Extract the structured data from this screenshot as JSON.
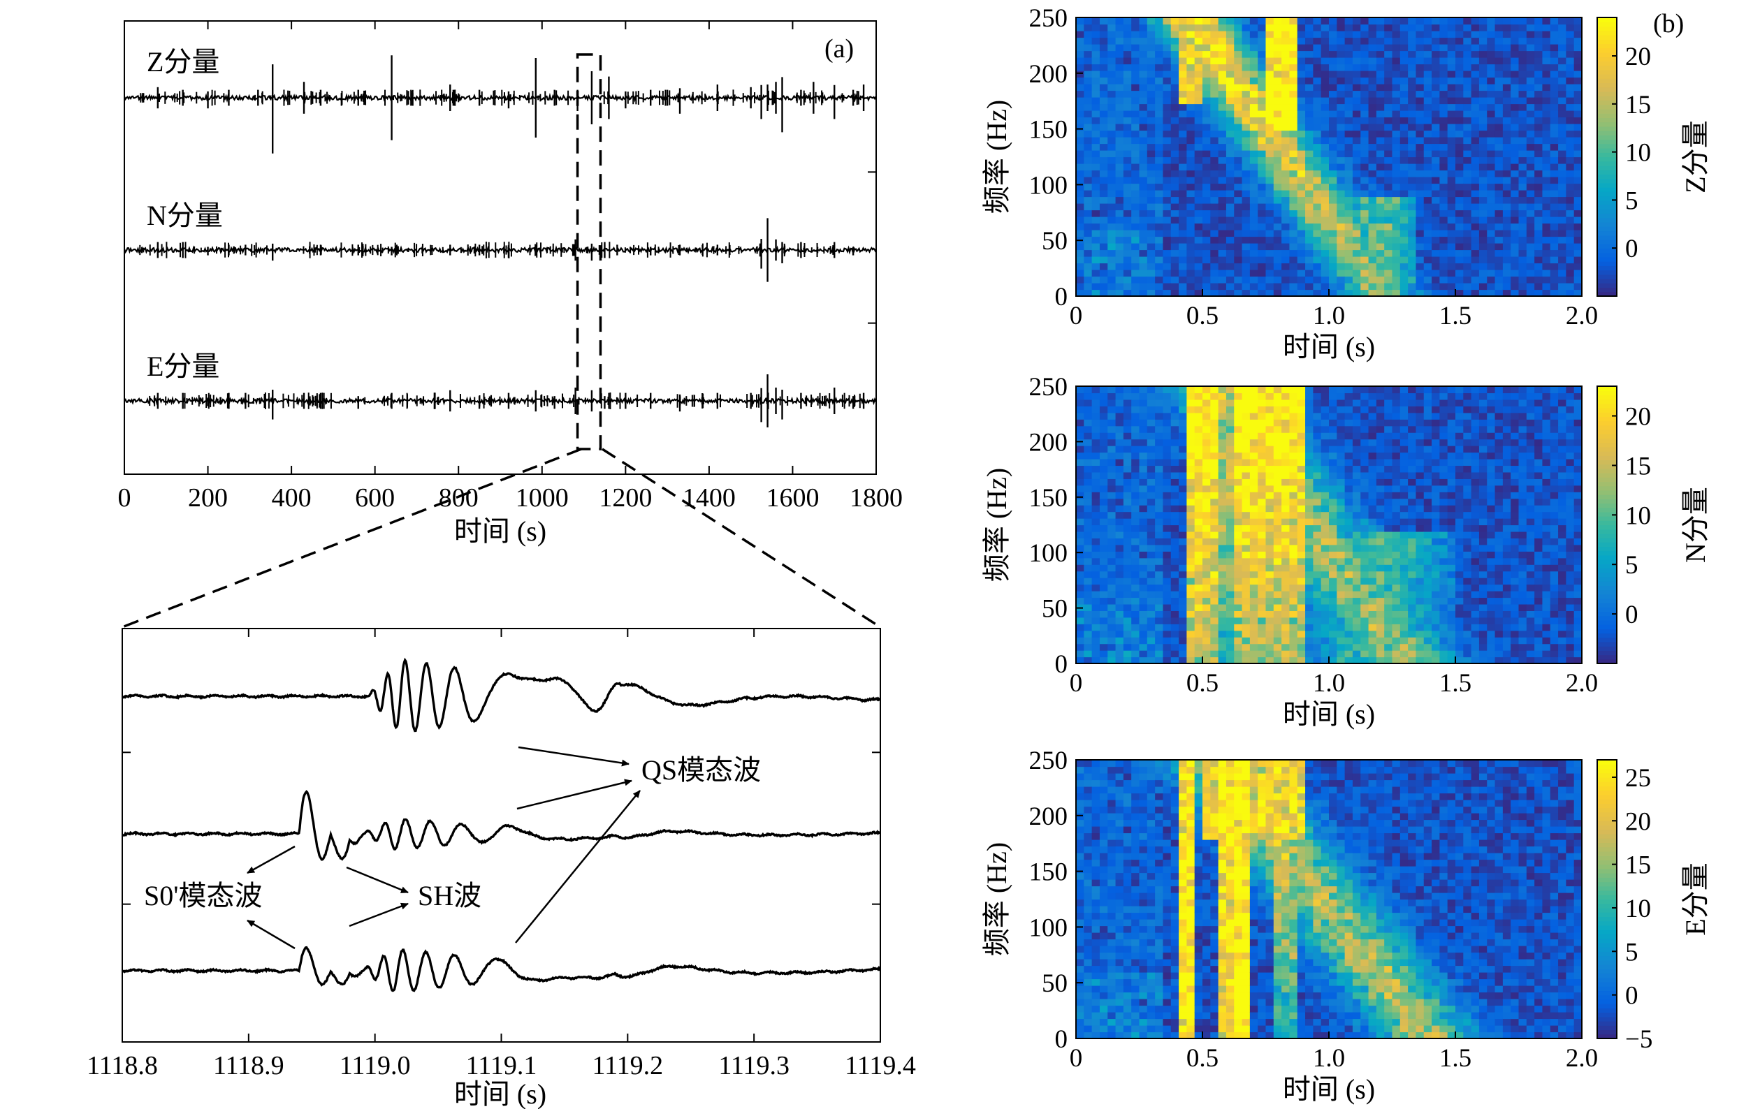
{
  "chart_data": [
    {
      "type": "line",
      "panel": "(a)",
      "xlabel": "时间 (s)",
      "xlim": [
        0,
        1800
      ],
      "xticks": [
        0,
        200,
        400,
        600,
        800,
        1000,
        1200,
        1400,
        1600,
        1800
      ],
      "series": [
        {
          "name": "Z分量",
          "spikes": [
            {
              "t": 80,
              "a": 4
            },
            {
              "t": 140,
              "a": 3
            },
            {
              "t": 200,
              "a": 4
            },
            {
              "t": 250,
              "a": 3
            },
            {
              "t": 320,
              "a": 3
            },
            {
              "t": 355,
              "a": 21
            },
            {
              "t": 430,
              "a": 6
            },
            {
              "t": 470,
              "a": 3
            },
            {
              "t": 520,
              "a": 3
            },
            {
              "t": 560,
              "a": 3
            },
            {
              "t": 640,
              "a": 16
            },
            {
              "t": 690,
              "a": 3
            },
            {
              "t": 780,
              "a": 5
            },
            {
              "t": 850,
              "a": 3
            },
            {
              "t": 920,
              "a": 4
            },
            {
              "t": 985,
              "a": 15
            },
            {
              "t": 1030,
              "a": 3
            },
            {
              "t": 1085,
              "a": 5
            },
            {
              "t": 1119,
              "a": 10
            },
            {
              "t": 1160,
              "a": 8
            },
            {
              "t": 1200,
              "a": 4
            },
            {
              "t": 1260,
              "a": 3
            },
            {
              "t": 1300,
              "a": 3
            },
            {
              "t": 1330,
              "a": 6
            },
            {
              "t": 1420,
              "a": 5
            },
            {
              "t": 1500,
              "a": 4
            },
            {
              "t": 1525,
              "a": 8
            },
            {
              "t": 1540,
              "a": 5
            },
            {
              "t": 1560,
              "a": 6
            },
            {
              "t": 1575,
              "a": 13
            },
            {
              "t": 1620,
              "a": 3
            },
            {
              "t": 1650,
              "a": 6
            },
            {
              "t": 1700,
              "a": 8
            },
            {
              "t": 1745,
              "a": 3
            },
            {
              "t": 1770,
              "a": 5
            }
          ]
        },
        {
          "name": "N分量",
          "spikes": [
            {
              "t": 80,
              "a": 3
            },
            {
              "t": 140,
              "a": 3
            },
            {
              "t": 200,
              "a": 2
            },
            {
              "t": 250,
              "a": 2
            },
            {
              "t": 290,
              "a": 2
            },
            {
              "t": 355,
              "a": 4
            },
            {
              "t": 470,
              "a": 2
            },
            {
              "t": 560,
              "a": 2
            },
            {
              "t": 640,
              "a": 2
            },
            {
              "t": 780,
              "a": 2
            },
            {
              "t": 850,
              "a": 2
            },
            {
              "t": 920,
              "a": 3
            },
            {
              "t": 985,
              "a": 2
            },
            {
              "t": 1080,
              "a": 4
            },
            {
              "t": 1119,
              "a": 4
            },
            {
              "t": 1150,
              "a": 3
            },
            {
              "t": 1180,
              "a": 2
            },
            {
              "t": 1260,
              "a": 2
            },
            {
              "t": 1330,
              "a": 2
            },
            {
              "t": 1420,
              "a": 2
            },
            {
              "t": 1525,
              "a": 7
            },
            {
              "t": 1540,
              "a": 12
            },
            {
              "t": 1560,
              "a": 4
            },
            {
              "t": 1575,
              "a": 5
            },
            {
              "t": 1620,
              "a": 3
            },
            {
              "t": 1700,
              "a": 3
            },
            {
              "t": 1745,
              "a": 2
            }
          ]
        },
        {
          "name": "E分量",
          "spikes": [
            {
              "t": 80,
              "a": 3
            },
            {
              "t": 140,
              "a": 3
            },
            {
              "t": 200,
              "a": 2
            },
            {
              "t": 250,
              "a": 3
            },
            {
              "t": 290,
              "a": 3
            },
            {
              "t": 355,
              "a": 7
            },
            {
              "t": 430,
              "a": 3
            },
            {
              "t": 470,
              "a": 3
            },
            {
              "t": 560,
              "a": 3
            },
            {
              "t": 640,
              "a": 3
            },
            {
              "t": 780,
              "a": 4
            },
            {
              "t": 850,
              "a": 3
            },
            {
              "t": 920,
              "a": 3
            },
            {
              "t": 985,
              "a": 4
            },
            {
              "t": 1030,
              "a": 3
            },
            {
              "t": 1080,
              "a": 5
            },
            {
              "t": 1119,
              "a": 4
            },
            {
              "t": 1150,
              "a": 3
            },
            {
              "t": 1200,
              "a": 3
            },
            {
              "t": 1260,
              "a": 3
            },
            {
              "t": 1330,
              "a": 4
            },
            {
              "t": 1420,
              "a": 3
            },
            {
              "t": 1500,
              "a": 3
            },
            {
              "t": 1525,
              "a": 8
            },
            {
              "t": 1540,
              "a": 10
            },
            {
              "t": 1560,
              "a": 5
            },
            {
              "t": 1575,
              "a": 7
            },
            {
              "t": 1620,
              "a": 3
            },
            {
              "t": 1700,
              "a": 5
            },
            {
              "t": 1745,
              "a": 3
            },
            {
              "t": 1770,
              "a": 3
            }
          ]
        }
      ],
      "highlight_window": [
        1085,
        1140
      ]
    },
    {
      "type": "line",
      "panel": "zoom",
      "xlabel": "时间 (s)",
      "xlim": [
        1118.8,
        1119.4
      ],
      "xticks": [
        1118.8,
        1118.9,
        1119.0,
        1119.1,
        1119.2,
        1119.3,
        1119.4
      ],
      "xtick_labels": [
        "1118.8",
        "1118.9",
        "1119.0",
        "1119.1",
        "1119.2",
        "1119.3",
        "1119.4"
      ],
      "traces": [
        {
          "onset": 1118.995,
          "amp": 1.0,
          "ring_freq_start": 90,
          "ring_freq_end": 30,
          "decay": 6,
          "sh_amp": 0
        },
        {
          "onset": 1118.94,
          "amp": 0.45,
          "ring_freq_start": 75,
          "ring_freq_end": 40,
          "decay": 8,
          "sh_amp": 1.0
        },
        {
          "onset": 1118.94,
          "amp": 0.6,
          "ring_freq_start": 80,
          "ring_freq_end": 40,
          "decay": 7,
          "sh_amp": 0.55
        }
      ],
      "annotations": [
        "QS模态波",
        "S0'模态波",
        "SH波"
      ]
    },
    {
      "type": "heatmap",
      "panel": "(b)",
      "xlabel": "时间 (s)",
      "ylabel": "频率 (Hz)",
      "xlim": [
        0,
        2.0
      ],
      "ylim": [
        0,
        250
      ],
      "xticks": [
        "0",
        "0.5",
        "1.0",
        "1.5",
        "2.0"
      ],
      "yticks": [
        "0",
        "50",
        "100",
        "150",
        "200",
        "250"
      ],
      "colormap": "parula",
      "panels": [
        {
          "colorbar_label": "Z分量",
          "clim": [
            -5,
            24
          ],
          "cticks": [
            "0",
            "5",
            "10",
            "15",
            "20"
          ]
        },
        {
          "colorbar_label": "N分量",
          "clim": [
            -5,
            23
          ],
          "cticks": [
            "0",
            "5",
            "10",
            "15",
            "20"
          ]
        },
        {
          "colorbar_label": "E分量",
          "clim": [
            -5,
            27
          ],
          "cticks": [
            "−5",
            "0",
            "5",
            "10",
            "15",
            "20",
            "25"
          ]
        }
      ]
    }
  ],
  "labels": {
    "panel_a": "(a)",
    "panel_b": "(b)",
    "z": "Z分量",
    "n": "N分量",
    "e": "E分量",
    "qs": "QS模态波",
    "s0": "S0'模态波",
    "sh": "SH波",
    "time": "时间 (s)",
    "freq": "频率 (Hz)"
  }
}
